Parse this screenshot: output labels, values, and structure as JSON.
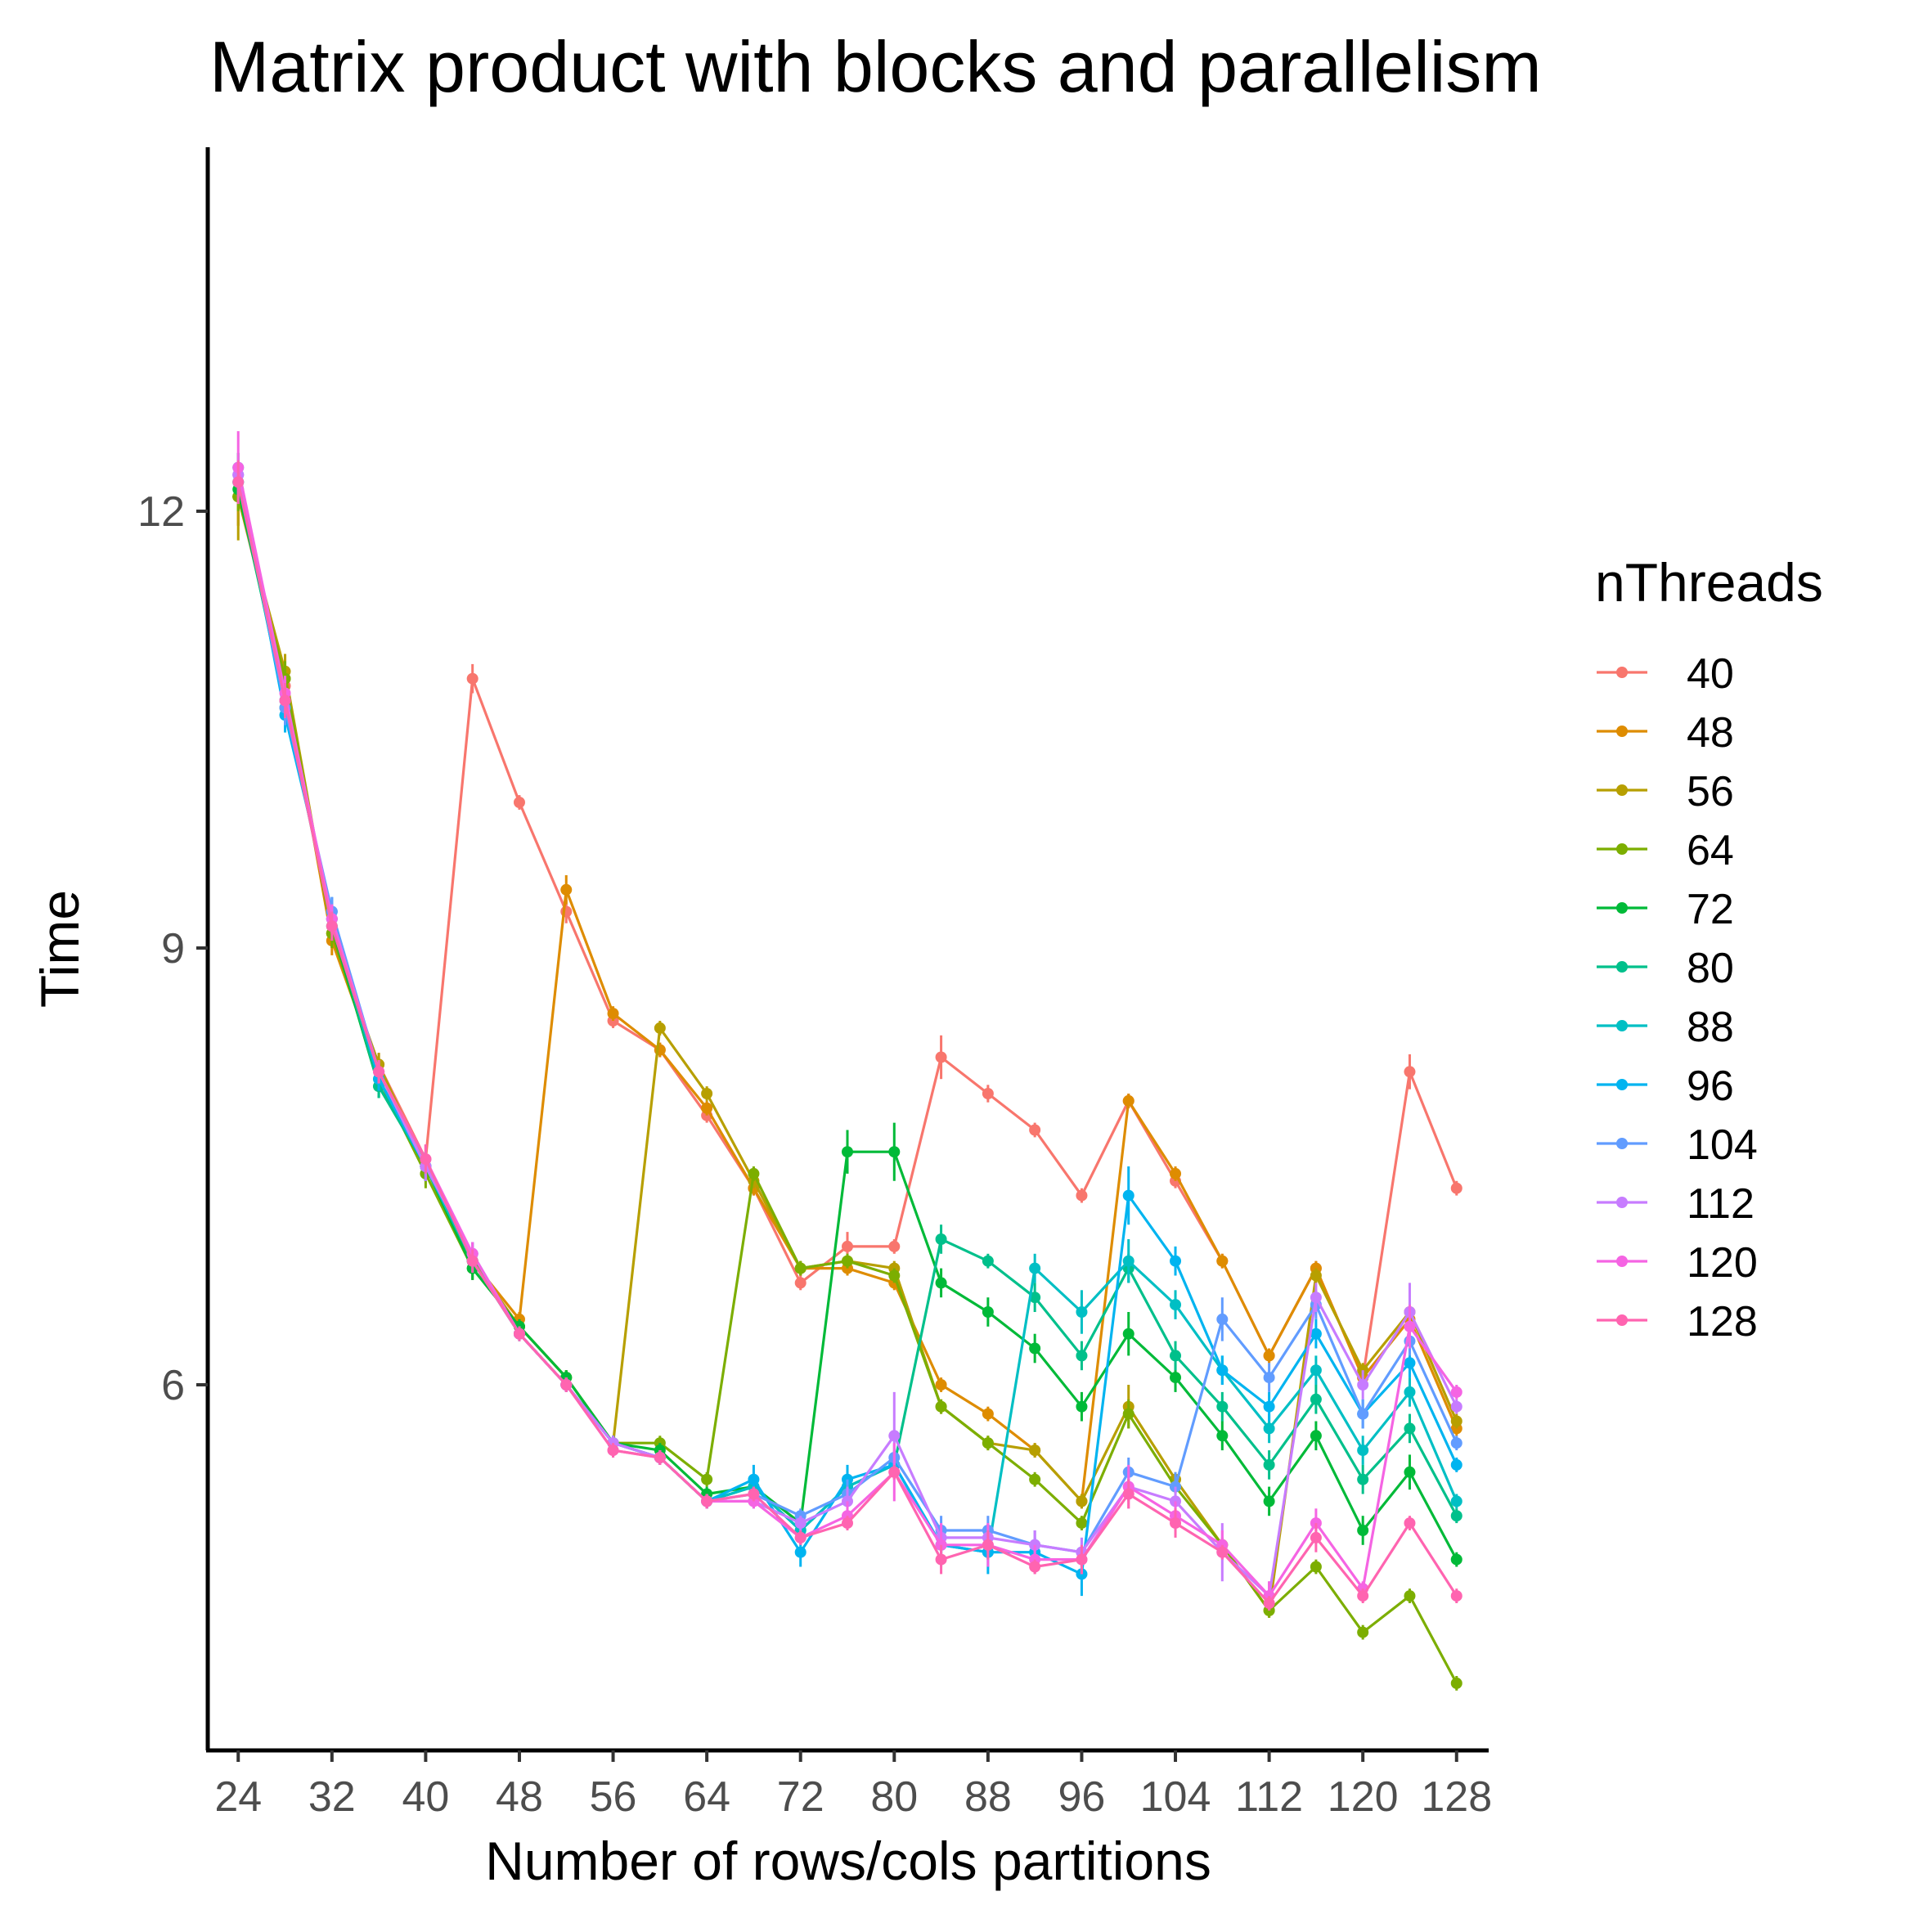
{
  "chart_data": {
    "type": "line",
    "title": "Matrix product with blocks and parallelism",
    "xlabel": "Number of rows/cols partitions",
    "ylabel": "Time",
    "x": [
      24,
      28,
      32,
      36,
      40,
      44,
      48,
      52,
      56,
      60,
      64,
      68,
      72,
      76,
      80,
      84,
      88,
      92,
      96,
      100,
      104,
      108,
      112,
      116,
      120,
      124,
      128
    ],
    "x_tick_values": [
      24,
      32,
      40,
      48,
      56,
      64,
      72,
      80,
      88,
      96,
      104,
      112,
      120,
      128
    ],
    "x_tick_labels": [
      "24",
      "32",
      "40",
      "48",
      "56",
      "64",
      "72",
      "80",
      "88",
      "96",
      "104",
      "112",
      "120",
      "128"
    ],
    "y_tick_values": [
      6,
      9,
      12
    ],
    "y_tick_labels": [
      "6",
      "9",
      "12"
    ],
    "xlim": [
      21.4,
      130.6
    ],
    "ylim": [
      3.5,
      14.5
    ],
    "grid": false,
    "legend": {
      "title": "nThreads",
      "position": "right"
    },
    "series": [
      {
        "name": "40",
        "color": "#F8766D",
        "values": [
          12.1,
          10.8,
          9.1,
          8.2,
          7.55,
          10.85,
          10.0,
          9.25,
          8.5,
          8.3,
          7.85,
          7.35,
          6.7,
          6.95,
          6.95,
          8.25,
          8.0,
          7.75,
          7.3,
          7.95,
          7.4,
          6.85,
          6.2,
          6.8,
          6.05,
          8.15,
          7.35
        ],
        "errors": [
          0.2,
          0.15,
          0.1,
          0.08,
          0.1,
          0.1,
          0.05,
          0.08,
          0.05,
          0.05,
          0.05,
          0.05,
          0.05,
          0.1,
          0.05,
          0.15,
          0.06,
          0.05,
          0.05,
          0.05,
          0.05,
          0.05,
          0.05,
          0.05,
          0.05,
          0.12,
          0.05
        ]
      },
      {
        "name": "48",
        "color": "#DE8C00",
        "values": [
          12.1,
          10.85,
          9.05,
          8.15,
          7.5,
          6.85,
          6.45,
          9.4,
          8.55,
          8.3,
          7.9,
          7.35,
          6.8,
          6.8,
          6.7,
          6.0,
          5.8,
          5.55,
          5.2,
          7.95,
          7.45,
          6.85,
          6.2,
          6.8,
          6.05,
          6.45,
          5.7
        ],
        "errors": [
          0.2,
          0.15,
          0.1,
          0.08,
          0.1,
          0.08,
          0.05,
          0.1,
          0.05,
          0.05,
          0.05,
          0.05,
          0.05,
          0.05,
          0.05,
          0.05,
          0.05,
          0.05,
          0.05,
          0.05,
          0.05,
          0.05,
          0.05,
          0.05,
          0.05,
          0.05,
          0.05
        ]
      },
      {
        "name": "56",
        "color": "#B79F00",
        "values": [
          12.1,
          10.9,
          9.1,
          8.2,
          7.5,
          6.85,
          6.4,
          6.05,
          5.6,
          8.45,
          8.0,
          7.4,
          6.8,
          6.85,
          6.8,
          5.85,
          5.6,
          5.55,
          5.2,
          5.85,
          5.35,
          4.9,
          4.45,
          6.75,
          6.1,
          6.5,
          5.75
        ],
        "errors": [
          0.3,
          0.12,
          0.1,
          0.08,
          0.1,
          0.08,
          0.05,
          0.05,
          0.05,
          0.05,
          0.05,
          0.05,
          0.05,
          0.05,
          0.05,
          0.05,
          0.05,
          0.05,
          0.05,
          0.15,
          0.05,
          0.05,
          0.05,
          0.05,
          0.05,
          0.05,
          0.05
        ]
      },
      {
        "name": "64",
        "color": "#7CAE00",
        "values": [
          12.1,
          10.85,
          9.1,
          8.1,
          7.45,
          6.8,
          6.4,
          6.05,
          5.6,
          5.6,
          5.35,
          7.45,
          6.8,
          6.85,
          6.75,
          5.85,
          5.6,
          5.35,
          5.05,
          5.8,
          5.3,
          4.9,
          4.45,
          4.75,
          4.3,
          4.55,
          3.95
        ],
        "errors": [
          0.1,
          0.12,
          0.1,
          0.08,
          0.1,
          0.08,
          0.05,
          0.05,
          0.05,
          0.05,
          0.05,
          0.05,
          0.05,
          0.05,
          0.05,
          0.05,
          0.05,
          0.05,
          0.05,
          0.1,
          0.05,
          0.05,
          0.05,
          0.05,
          0.05,
          0.05,
          0.05
        ]
      },
      {
        "name": "72",
        "color": "#00BA38",
        "values": [
          12.15,
          10.7,
          9.15,
          8.05,
          7.5,
          6.8,
          6.4,
          6.05,
          5.6,
          5.55,
          5.25,
          5.3,
          5.05,
          7.6,
          7.6,
          6.7,
          6.5,
          6.25,
          5.85,
          6.35,
          6.05,
          5.65,
          5.2,
          5.65,
          5.0,
          5.4,
          4.8
        ],
        "errors": [
          0.1,
          0.12,
          0.1,
          0.08,
          0.1,
          0.08,
          0.05,
          0.05,
          0.05,
          0.05,
          0.05,
          0.05,
          0.05,
          0.15,
          0.2,
          0.1,
          0.1,
          0.1,
          0.1,
          0.15,
          0.1,
          0.1,
          0.1,
          0.1,
          0.1,
          0.12,
          0.05
        ]
      },
      {
        "name": "80",
        "color": "#00C08B",
        "values": [
          12.2,
          10.65,
          9.2,
          8.05,
          7.5,
          6.85,
          6.35,
          6.0,
          5.6,
          5.5,
          5.2,
          5.3,
          5.0,
          5.3,
          5.45,
          7.0,
          6.85,
          6.6,
          6.2,
          6.8,
          6.2,
          5.85,
          5.45,
          5.9,
          5.35,
          5.7,
          5.1
        ],
        "errors": [
          0.1,
          0.12,
          0.1,
          0.08,
          0.1,
          0.08,
          0.05,
          0.05,
          0.05,
          0.05,
          0.05,
          0.05,
          0.05,
          0.1,
          0.05,
          0.1,
          0.05,
          0.1,
          0.1,
          0.1,
          0.1,
          0.1,
          0.1,
          0.1,
          0.1,
          0.1,
          0.05
        ]
      },
      {
        "name": "88",
        "color": "#00BFC4",
        "values": [
          12.2,
          10.7,
          9.2,
          8.1,
          7.5,
          6.85,
          6.35,
          6.0,
          5.6,
          5.5,
          5.2,
          5.3,
          5.0,
          5.3,
          5.45,
          4.9,
          4.85,
          6.8,
          6.5,
          6.85,
          6.55,
          6.1,
          5.7,
          6.1,
          5.55,
          5.95,
          5.2
        ],
        "errors": [
          0.1,
          0.12,
          0.1,
          0.08,
          0.1,
          0.08,
          0.05,
          0.05,
          0.05,
          0.05,
          0.05,
          0.05,
          0.05,
          0.1,
          0.05,
          0.1,
          0.05,
          0.1,
          0.15,
          0.15,
          0.1,
          0.1,
          0.1,
          0.1,
          0.1,
          0.1,
          0.05
        ]
      },
      {
        "name": "96",
        "color": "#00B4F0",
        "values": [
          12.3,
          10.6,
          9.25,
          8.1,
          7.5,
          6.9,
          6.35,
          6.0,
          5.6,
          5.5,
          5.2,
          5.35,
          4.85,
          5.35,
          5.45,
          4.9,
          4.85,
          4.85,
          4.7,
          7.3,
          6.85,
          6.1,
          5.85,
          6.35,
          5.8,
          6.15,
          5.45
        ],
        "errors": [
          0.1,
          0.12,
          0.1,
          0.08,
          0.1,
          0.08,
          0.05,
          0.05,
          0.05,
          0.05,
          0.05,
          0.1,
          0.1,
          0.1,
          0.05,
          0.1,
          0.15,
          0.1,
          0.15,
          0.2,
          0.1,
          0.1,
          0.1,
          0.1,
          0.1,
          0.1,
          0.05
        ]
      },
      {
        "name": "104",
        "color": "#619CFF",
        "values": [
          12.25,
          10.65,
          9.25,
          8.15,
          7.5,
          6.9,
          6.35,
          6.0,
          5.6,
          5.5,
          5.2,
          5.25,
          5.1,
          5.25,
          5.5,
          5.0,
          5.0,
          4.9,
          4.85,
          5.4,
          5.3,
          6.45,
          6.05,
          6.55,
          5.8,
          6.3,
          5.6
        ],
        "errors": [
          0.1,
          0.12,
          0.1,
          0.08,
          0.1,
          0.08,
          0.05,
          0.05,
          0.05,
          0.05,
          0.05,
          0.05,
          0.05,
          0.1,
          0.05,
          0.1,
          0.1,
          0.1,
          0.1,
          0.1,
          0.1,
          0.15,
          0.1,
          0.1,
          0.1,
          0.1,
          0.05
        ]
      },
      {
        "name": "112",
        "color": "#C77CFF",
        "values": [
          12.25,
          10.7,
          9.2,
          8.15,
          7.5,
          6.9,
          6.35,
          6.0,
          5.6,
          5.5,
          5.2,
          5.2,
          5.05,
          5.2,
          5.65,
          4.95,
          4.95,
          4.9,
          4.85,
          5.3,
          5.2,
          4.85,
          4.55,
          6.6,
          6.0,
          6.5,
          5.85
        ],
        "errors": [
          0.1,
          0.12,
          0.1,
          0.08,
          0.1,
          0.08,
          0.05,
          0.05,
          0.05,
          0.05,
          0.05,
          0.05,
          0.05,
          0.1,
          0.3,
          0.1,
          0.1,
          0.1,
          0.1,
          0.1,
          0.1,
          0.2,
          0.1,
          0.1,
          0.1,
          0.2,
          0.05
        ]
      },
      {
        "name": "120",
        "color": "#F564E3",
        "values": [
          12.3,
          10.75,
          9.2,
          8.15,
          7.55,
          6.9,
          6.35,
          6.0,
          5.55,
          5.5,
          5.2,
          5.2,
          4.95,
          5.1,
          5.4,
          4.9,
          4.9,
          4.8,
          4.8,
          5.3,
          5.1,
          4.9,
          4.55,
          5.05,
          4.6,
          6.4,
          5.95
        ],
        "errors": [
          0.25,
          0.12,
          0.1,
          0.08,
          0.1,
          0.08,
          0.05,
          0.05,
          0.05,
          0.05,
          0.05,
          0.05,
          0.05,
          0.1,
          0.2,
          0.15,
          0.15,
          0.1,
          0.1,
          0.15,
          0.1,
          0.1,
          0.1,
          0.1,
          0.05,
          0.15,
          0.05
        ]
      },
      {
        "name": "128",
        "color": "#FF64B0",
        "values": [
          12.2,
          10.7,
          9.15,
          8.15,
          7.55,
          6.85,
          6.35,
          6.0,
          5.55,
          5.5,
          5.2,
          5.25,
          4.95,
          5.05,
          5.4,
          4.8,
          4.9,
          4.75,
          4.8,
          5.25,
          5.05,
          4.85,
          4.5,
          4.95,
          4.55,
          5.05,
          4.55
        ],
        "errors": [
          0.15,
          0.12,
          0.1,
          0.08,
          0.1,
          0.08,
          0.05,
          0.05,
          0.05,
          0.05,
          0.05,
          0.05,
          0.05,
          0.05,
          0.05,
          0.1,
          0.1,
          0.05,
          0.1,
          0.1,
          0.1,
          0.05,
          0.05,
          0.1,
          0.05,
          0.05,
          0.05
        ]
      }
    ]
  }
}
